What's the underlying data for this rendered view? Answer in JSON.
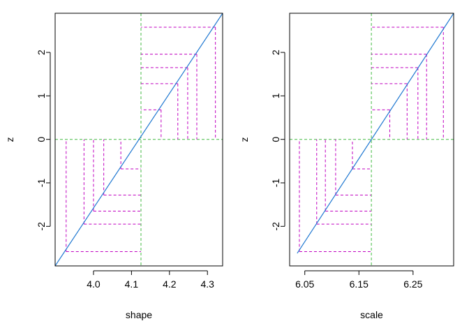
{
  "chart_data": [
    {
      "type": "line",
      "xlabel": "shape",
      "ylabel": "z",
      "xlim": [
        3.899,
        4.34
      ],
      "ylim": [
        -2.91,
        2.9
      ],
      "x_ticks": [
        4.0,
        4.1,
        4.2,
        4.3
      ],
      "x_tick_labels": [
        "4.0",
        "4.1",
        "4.2",
        "4.3"
      ],
      "y_ticks": [
        -2,
        -1,
        0,
        1,
        2
      ],
      "y_tick_labels": [
        "-2",
        "-1",
        "0",
        "1",
        "2"
      ],
      "line": {
        "x": [
          3.899,
          4.34
        ],
        "y": [
          -2.91,
          2.9
        ],
        "color": "#1f78d1"
      },
      "ref_x": 4.125,
      "ref_y": 0,
      "points": [
        {
          "x": 3.928,
          "y": -2.58
        },
        {
          "x": 3.975,
          "y": -1.95
        },
        {
          "x": 4.0,
          "y": -1.65
        },
        {
          "x": 4.027,
          "y": -1.28
        },
        {
          "x": 4.072,
          "y": -0.68
        },
        {
          "x": 4.178,
          "y": 0.68
        },
        {
          "x": 4.222,
          "y": 1.28
        },
        {
          "x": 4.248,
          "y": 1.65
        },
        {
          "x": 4.272,
          "y": 1.96
        },
        {
          "x": 4.321,
          "y": 2.58
        }
      ],
      "colors": {
        "segments": "#c000c0",
        "reference": "#44bb44",
        "line": "#1f78d1"
      }
    },
    {
      "type": "line",
      "xlabel": "scale",
      "ylabel": "z",
      "xlim": [
        6.022,
        6.325
      ],
      "ylim": [
        -2.91,
        2.9
      ],
      "x_ticks": [
        6.05,
        6.15,
        6.25
      ],
      "x_tick_labels": [
        "6.05",
        "6.15",
        "6.25"
      ],
      "y_ticks": [
        -2,
        -1,
        0,
        1,
        2
      ],
      "y_tick_labels": [
        "-2",
        "-1",
        "0",
        "1",
        "2"
      ],
      "line": {
        "x": [
          6.036,
          6.325
        ],
        "y": [
          -2.62,
          2.9
        ],
        "color": "#1f78d1"
      },
      "ref_x": 6.173,
      "ref_y": 0,
      "points": [
        {
          "x": 6.04,
          "y": -2.58
        },
        {
          "x": 6.072,
          "y": -1.95
        },
        {
          "x": 6.088,
          "y": -1.65
        },
        {
          "x": 6.107,
          "y": -1.28
        },
        {
          "x": 6.138,
          "y": -0.68
        },
        {
          "x": 6.207,
          "y": 0.68
        },
        {
          "x": 6.239,
          "y": 1.28
        },
        {
          "x": 6.259,
          "y": 1.65
        },
        {
          "x": 6.275,
          "y": 1.96
        },
        {
          "x": 6.306,
          "y": 2.58
        }
      ],
      "colors": {
        "segments": "#c000c0",
        "reference": "#44bb44",
        "line": "#1f78d1"
      }
    }
  ]
}
